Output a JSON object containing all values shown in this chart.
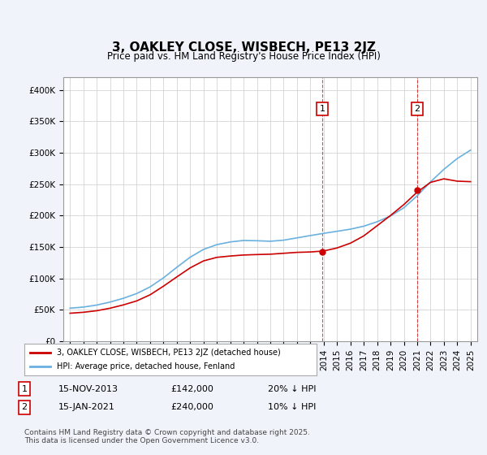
{
  "title": "3, OAKLEY CLOSE, WISBECH, PE13 2JZ",
  "subtitle": "Price paid vs. HM Land Registry's House Price Index (HPI)",
  "ylabel_ticks": [
    "£0",
    "£50K",
    "£100K",
    "£150K",
    "£200K",
    "£250K",
    "£300K",
    "£350K",
    "£400K"
  ],
  "ytick_values": [
    0,
    50000,
    100000,
    150000,
    200000,
    250000,
    300000,
    350000,
    400000
  ],
  "ylim": [
    0,
    420000
  ],
  "hpi_color": "#6ab0e0",
  "price_color": "#cc0000",
  "vline_color": "#cc0000",
  "background_color": "#f0f4fa",
  "plot_bg": "#ffffff",
  "grid_color": "#cccccc",
  "annotation1": {
    "label": "1",
    "date_index": 18.9,
    "price": 142000,
    "date_str": "15-NOV-2013",
    "price_str": "£142,000",
    "note": "20% ↓ HPI"
  },
  "annotation2": {
    "label": "2",
    "date_index": 26.0,
    "price": 240000,
    "date_str": "15-JAN-2021",
    "price_str": "£240,000",
    "note": "10% ↓ HPI"
  },
  "legend_line1": "3, OAKLEY CLOSE, WISBECH, PE13 2JZ (detached house)",
  "legend_line2": "HPI: Average price, detached house, Fenland",
  "footnote": "Contains HM Land Registry data © Crown copyright and database right 2025.\nThis data is licensed under the Open Government Licence v3.0.",
  "x_start_year": 1995,
  "x_end_year": 2025,
  "hpi_data": [
    52000,
    54000,
    57000,
    62000,
    68000,
    75000,
    85000,
    100000,
    118000,
    135000,
    148000,
    155000,
    158000,
    162000,
    160000,
    158000,
    160000,
    165000,
    168000,
    172000,
    175000,
    178000,
    182000,
    190000,
    198000,
    210000,
    230000,
    255000,
    275000,
    290000,
    310000
  ],
  "price_data_x": [
    0,
    1,
    2,
    3,
    4,
    5,
    6,
    7,
    8,
    9,
    10,
    11,
    12,
    13,
    14,
    15,
    16,
    17,
    18,
    19,
    20,
    21,
    22,
    23,
    24,
    25,
    26,
    27,
    28,
    29,
    30
  ],
  "price_data_y": [
    44000,
    46000,
    48000,
    52000,
    58000,
    63000,
    72000,
    88000,
    102000,
    118000,
    130000,
    135000,
    135000,
    138000,
    138000,
    138000,
    140000,
    142000,
    142000,
    142000,
    148000,
    155000,
    165000,
    185000,
    200000,
    215000,
    240000,
    255000,
    265000,
    250000,
    255000
  ]
}
